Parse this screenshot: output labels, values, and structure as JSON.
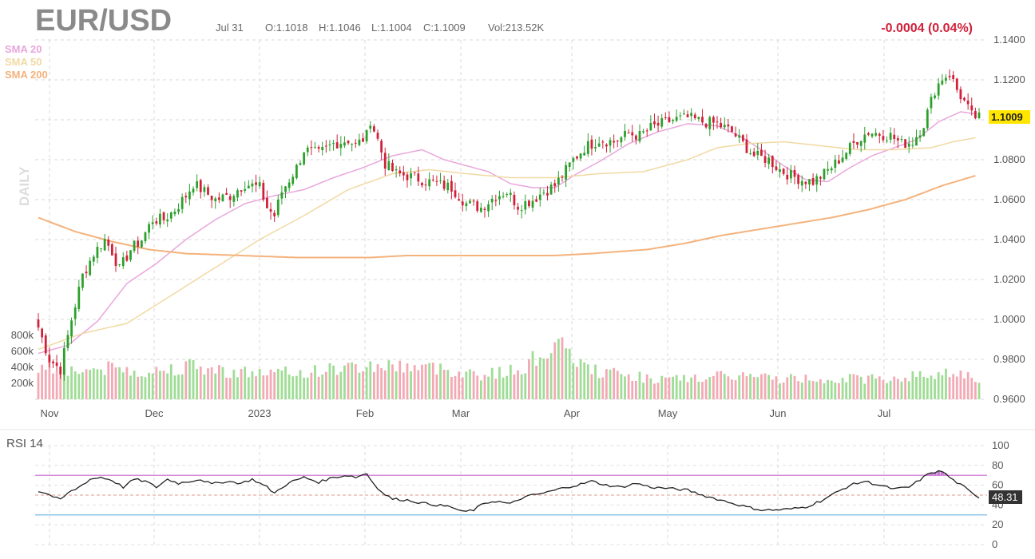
{
  "header": {
    "symbol": "EUR/USD",
    "date": "Jul 31",
    "open": "O:1.1018",
    "high": "H:1.1046",
    "low": "L:1.1004",
    "close": "C:1.1009",
    "volume": "Vol:213.52K",
    "change": "-0.0004 (0.04%)",
    "interval": "DAILY"
  },
  "legend": [
    {
      "label": "SMA 20",
      "color": "#e9a6dc"
    },
    {
      "label": "SMA 50",
      "color": "#f1d9a3"
    },
    {
      "label": "SMA 200",
      "color": "#f4b27c"
    }
  ],
  "colors": {
    "up": "#2ca02c",
    "down": "#d0213a",
    "vol_up": "#9fdc95",
    "vol_down": "#f3a9b4",
    "change": "#d0213a",
    "last_price_bg": "#ffe600",
    "rsi_line": "#222222",
    "rsi_upper": "#d48ad8",
    "rsi_mid": "#e09a8a",
    "rsi_lower": "#8fc5ea"
  },
  "chart_data": {
    "type": "candlestick",
    "price_axis": {
      "min": 0.96,
      "max": 1.14,
      "ticks": [
        "1.1400",
        "1.1200",
        "1.1000",
        "1.0800",
        "1.0600",
        "1.0400",
        "1.0200",
        "1.0000",
        "0.9800",
        "0.9600"
      ]
    },
    "volume_axis": {
      "ticks": [
        "800k",
        "600k",
        "400k",
        "200k"
      ],
      "max": 1000000
    },
    "x_labels": [
      "Nov",
      "Dec",
      "2023",
      "Feb",
      "Mar",
      "Apr",
      "May",
      "Jun",
      "Jul"
    ],
    "last_price": "1.1009",
    "sma_series": [
      {
        "name": "SMA 20",
        "anchors": [
          [
            0,
            0.983
          ],
          [
            8,
            0.987
          ],
          [
            16,
            0.999
          ],
          [
            24,
            1.018
          ],
          [
            32,
            1.028
          ],
          [
            40,
            1.04
          ],
          [
            48,
            1.05
          ],
          [
            56,
            1.058
          ],
          [
            64,
            1.062
          ],
          [
            72,
            1.065
          ],
          [
            80,
            1.071
          ],
          [
            88,
            1.076
          ],
          [
            96,
            1.082
          ],
          [
            104,
            1.085
          ],
          [
            110,
            1.08
          ],
          [
            116,
            1.077
          ],
          [
            122,
            1.074
          ],
          [
            128,
            1.068
          ],
          [
            134,
            1.066
          ],
          [
            140,
            1.066
          ],
          [
            146,
            1.073
          ],
          [
            152,
            1.079
          ],
          [
            160,
            1.088
          ],
          [
            168,
            1.094
          ],
          [
            176,
            1.098
          ],
          [
            184,
            1.097
          ],
          [
            190,
            1.092
          ],
          [
            196,
            1.085
          ],
          [
            202,
            1.077
          ],
          [
            208,
            1.07
          ],
          [
            214,
            1.069
          ],
          [
            220,
            1.076
          ],
          [
            226,
            1.082
          ],
          [
            232,
            1.086
          ],
          [
            238,
            1.09
          ],
          [
            244,
            1.099
          ],
          [
            250,
            1.104
          ],
          [
            254,
            1.103
          ]
        ]
      },
      {
        "name": "SMA 50",
        "anchors": [
          [
            0,
            0.985
          ],
          [
            12,
            0.993
          ],
          [
            24,
            0.998
          ],
          [
            36,
            1.012
          ],
          [
            48,
            1.026
          ],
          [
            60,
            1.04
          ],
          [
            72,
            1.052
          ],
          [
            84,
            1.065
          ],
          [
            96,
            1.073
          ],
          [
            106,
            1.075
          ],
          [
            116,
            1.073
          ],
          [
            128,
            1.071
          ],
          [
            140,
            1.071
          ],
          [
            152,
            1.073
          ],
          [
            164,
            1.074
          ],
          [
            176,
            1.08
          ],
          [
            184,
            1.086
          ],
          [
            192,
            1.088
          ],
          [
            202,
            1.089
          ],
          [
            212,
            1.087
          ],
          [
            222,
            1.085
          ],
          [
            232,
            1.085
          ],
          [
            242,
            1.086
          ],
          [
            248,
            1.089
          ],
          [
            254,
            1.091
          ]
        ]
      },
      {
        "name": "SMA 200",
        "anchors": [
          [
            0,
            1.051
          ],
          [
            10,
            1.044
          ],
          [
            20,
            1.039
          ],
          [
            30,
            1.035
          ],
          [
            40,
            1.033
          ],
          [
            55,
            1.032
          ],
          [
            70,
            1.031
          ],
          [
            90,
            1.031
          ],
          [
            100,
            1.032
          ],
          [
            120,
            1.032
          ],
          [
            140,
            1.032
          ],
          [
            150,
            1.033
          ],
          [
            165,
            1.035
          ],
          [
            175,
            1.038
          ],
          [
            185,
            1.042
          ],
          [
            195,
            1.045
          ],
          [
            205,
            1.048
          ],
          [
            215,
            1.051
          ],
          [
            225,
            1.055
          ],
          [
            235,
            1.06
          ],
          [
            245,
            1.067
          ],
          [
            254,
            1.072
          ]
        ]
      }
    ],
    "price_anchors": [
      [
        0,
        0.996
      ],
      [
        3,
        0.98
      ],
      [
        6,
        0.975
      ],
      [
        9,
        1.0
      ],
      [
        12,
        1.022
      ],
      [
        15,
        1.033
      ],
      [
        18,
        1.04
      ],
      [
        20,
        1.034
      ],
      [
        22,
        1.025
      ],
      [
        25,
        1.035
      ],
      [
        28,
        1.04
      ],
      [
        31,
        1.05
      ],
      [
        34,
        1.05
      ],
      [
        37,
        1.055
      ],
      [
        40,
        1.062
      ],
      [
        42,
        1.068
      ],
      [
        45,
        1.064
      ],
      [
        48,
        1.06
      ],
      [
        52,
        1.062
      ],
      [
        56,
        1.068
      ],
      [
        60,
        1.066
      ],
      [
        62,
        1.056
      ],
      [
        64,
        1.052
      ],
      [
        66,
        1.064
      ],
      [
        70,
        1.076
      ],
      [
        72,
        1.085
      ],
      [
        76,
        1.083
      ],
      [
        80,
        1.088
      ],
      [
        84,
        1.09
      ],
      [
        86,
        1.087
      ],
      [
        89,
        1.092
      ],
      [
        90,
        1.1
      ],
      [
        92,
        1.09
      ],
      [
        94,
        1.078
      ],
      [
        97,
        1.073
      ],
      [
        100,
        1.072
      ],
      [
        104,
        1.07
      ],
      [
        108,
        1.068
      ],
      [
        112,
        1.066
      ],
      [
        116,
        1.058
      ],
      [
        120,
        1.056
      ],
      [
        124,
        1.062
      ],
      [
        127,
        1.064
      ],
      [
        130,
        1.057
      ],
      [
        134,
        1.06
      ],
      [
        137,
        1.064
      ],
      [
        140,
        1.067
      ],
      [
        142,
        1.072
      ],
      [
        145,
        1.08
      ],
      [
        148,
        1.086
      ],
      [
        152,
        1.09
      ],
      [
        156,
        1.089
      ],
      [
        160,
        1.093
      ],
      [
        163,
        1.092
      ],
      [
        166,
        1.096
      ],
      [
        169,
        1.098
      ],
      [
        172,
        1.1
      ],
      [
        176,
        1.101
      ],
      [
        180,
        1.099
      ],
      [
        184,
        1.098
      ],
      [
        188,
        1.094
      ],
      [
        191,
        1.088
      ],
      [
        194,
        1.082
      ],
      [
        198,
        1.08
      ],
      [
        201,
        1.075
      ],
      [
        204,
        1.072
      ],
      [
        207,
        1.07
      ],
      [
        210,
        1.069
      ],
      [
        213,
        1.073
      ],
      [
        216,
        1.078
      ],
      [
        219,
        1.084
      ],
      [
        222,
        1.09
      ],
      [
        225,
        1.094
      ],
      [
        228,
        1.093
      ],
      [
        231,
        1.092
      ],
      [
        234,
        1.088
      ],
      [
        237,
        1.089
      ],
      [
        240,
        1.098
      ],
      [
        243,
        1.115
      ],
      [
        245,
        1.121
      ],
      [
        247,
        1.123
      ],
      [
        249,
        1.115
      ],
      [
        251,
        1.109
      ],
      [
        253,
        1.102
      ],
      [
        255,
        1.101
      ]
    ],
    "volume_anchors": [
      [
        0,
        420000
      ],
      [
        10,
        360000
      ],
      [
        20,
        390000
      ],
      [
        30,
        340000
      ],
      [
        40,
        420000
      ],
      [
        50,
        360000
      ],
      [
        60,
        330000
      ],
      [
        70,
        330000
      ],
      [
        80,
        380000
      ],
      [
        90,
        420000
      ],
      [
        100,
        420000
      ],
      [
        110,
        380000
      ],
      [
        120,
        310000
      ],
      [
        130,
        360000
      ],
      [
        140,
        690000
      ],
      [
        150,
        360000
      ],
      [
        160,
        300000
      ],
      [
        170,
        240000
      ],
      [
        180,
        270000
      ],
      [
        190,
        300000
      ],
      [
        200,
        260000
      ],
      [
        210,
        260000
      ],
      [
        220,
        260000
      ],
      [
        230,
        260000
      ],
      [
        240,
        300000
      ],
      [
        250,
        350000
      ],
      [
        255,
        220000
      ]
    ],
    "rsi": {
      "label": "RSI 14",
      "value": "48.31",
      "upper": 70,
      "middle": 50,
      "lower": 30,
      "axis_ticks": [
        "100",
        "80",
        "60",
        "40",
        "20",
        "0"
      ],
      "anchors": [
        [
          0,
          54
        ],
        [
          2,
          52
        ],
        [
          6,
          45
        ],
        [
          8,
          52
        ],
        [
          11,
          58
        ],
        [
          14,
          66
        ],
        [
          17,
          68
        ],
        [
          20,
          65
        ],
        [
          23,
          58
        ],
        [
          26,
          66
        ],
        [
          29,
          64
        ],
        [
          32,
          58
        ],
        [
          35,
          66
        ],
        [
          38,
          62
        ],
        [
          41,
          64
        ],
        [
          44,
          66
        ],
        [
          47,
          61
        ],
        [
          51,
          64
        ],
        [
          55,
          62
        ],
        [
          58,
          66
        ],
        [
          62,
          58
        ],
        [
          64,
          52
        ],
        [
          66,
          58
        ],
        [
          69,
          64
        ],
        [
          72,
          68
        ],
        [
          76,
          63
        ],
        [
          80,
          68
        ],
        [
          84,
          70
        ],
        [
          86,
          68
        ],
        [
          89,
          72
        ],
        [
          90,
          66
        ],
        [
          93,
          53
        ],
        [
          96,
          46
        ],
        [
          100,
          45
        ],
        [
          104,
          42
        ],
        [
          108,
          40
        ],
        [
          112,
          38
        ],
        [
          115,
          33
        ],
        [
          118,
          35
        ],
        [
          121,
          42
        ],
        [
          124,
          44
        ],
        [
          128,
          41
        ],
        [
          131,
          47
        ],
        [
          134,
          50
        ],
        [
          137,
          52
        ],
        [
          140,
          55
        ],
        [
          143,
          58
        ],
        [
          146,
          60
        ],
        [
          150,
          64
        ],
        [
          154,
          60
        ],
        [
          158,
          58
        ],
        [
          162,
          62
        ],
        [
          166,
          58
        ],
        [
          170,
          57
        ],
        [
          173,
          56
        ],
        [
          176,
          55
        ],
        [
          180,
          50
        ],
        [
          184,
          46
        ],
        [
          188,
          42
        ],
        [
          192,
          38
        ],
        [
          196,
          35
        ],
        [
          200,
          35
        ],
        [
          204,
          36
        ],
        [
          208,
          38
        ],
        [
          212,
          44
        ],
        [
          216,
          52
        ],
        [
          220,
          60
        ],
        [
          224,
          64
        ],
        [
          228,
          60
        ],
        [
          232,
          56
        ],
        [
          236,
          58
        ],
        [
          240,
          68
        ],
        [
          242,
          73
        ],
        [
          245,
          74
        ],
        [
          248,
          65
        ],
        [
          251,
          58
        ],
        [
          253,
          52
        ],
        [
          255,
          48
        ]
      ]
    }
  }
}
